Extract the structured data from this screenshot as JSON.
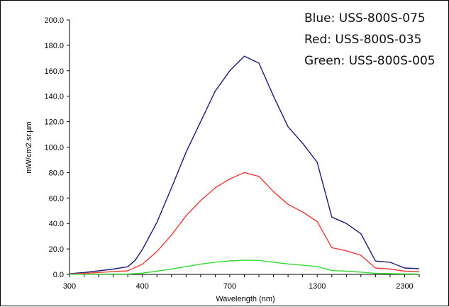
{
  "chart_data": {
    "type": "line",
    "xlabel": "Wavelength (nm)",
    "ylabel": "mW/cm2.sr.µm",
    "ylim": [
      0,
      200
    ],
    "y_ticks": [
      "0.0",
      "20.0",
      "40.0",
      "60.0",
      "80.0",
      "100.0",
      "120.0",
      "140.0",
      "160.0",
      "180.0",
      "200.0"
    ],
    "x_tick_labels": [
      "300",
      "400",
      "700",
      "1300",
      "2300"
    ],
    "grid": false,
    "legend_position": "top-right",
    "legend": [
      {
        "text": "Blue: USS-800S-075",
        "color": "#1a1a7a"
      },
      {
        "text": "Red: USS-800S-035",
        "color": "#f03a3a"
      },
      {
        "text": "Green: USS-800S-005",
        "color": "#33dd33"
      }
    ],
    "series": [
      {
        "color": "#1a1a7a",
        "values": [
          [
            0,
            0.5
          ],
          [
            0.2,
            1.5
          ],
          [
            0.4,
            2.8
          ],
          [
            0.6,
            4.2
          ],
          [
            0.8,
            6
          ],
          [
            0.9,
            11
          ],
          [
            1.0,
            19.5
          ],
          [
            1.2,
            41
          ],
          [
            1.4,
            68
          ],
          [
            1.6,
            96
          ],
          [
            1.8,
            120
          ],
          [
            2.0,
            144
          ],
          [
            2.2,
            160
          ],
          [
            2.4,
            171.5
          ],
          [
            2.6,
            166
          ],
          [
            2.8,
            140
          ],
          [
            3.0,
            116
          ],
          [
            3.2,
            103
          ],
          [
            3.4,
            88
          ],
          [
            3.6,
            45
          ],
          [
            3.8,
            40
          ],
          [
            4.0,
            32
          ],
          [
            4.2,
            10.5
          ],
          [
            4.4,
            9.5
          ],
          [
            4.6,
            5
          ],
          [
            4.8,
            4.5
          ]
        ]
      },
      {
        "color": "#f03a3a",
        "values": [
          [
            0,
            0.3
          ],
          [
            0.2,
            0.8
          ],
          [
            0.4,
            1.5
          ],
          [
            0.6,
            2.2
          ],
          [
            0.8,
            2.8
          ],
          [
            1.0,
            8
          ],
          [
            1.2,
            18
          ],
          [
            1.4,
            31
          ],
          [
            1.6,
            46
          ],
          [
            1.8,
            58
          ],
          [
            2.0,
            68
          ],
          [
            2.2,
            75
          ],
          [
            2.4,
            80
          ],
          [
            2.6,
            77
          ],
          [
            2.8,
            65
          ],
          [
            3.0,
            55
          ],
          [
            3.2,
            49
          ],
          [
            3.4,
            41.5
          ],
          [
            3.6,
            21
          ],
          [
            3.8,
            18.5
          ],
          [
            4.0,
            15
          ],
          [
            4.2,
            5
          ],
          [
            4.4,
            4.2
          ],
          [
            4.6,
            2.5
          ],
          [
            4.8,
            2.2
          ]
        ]
      },
      {
        "color": "#33dd33",
        "values": [
          [
            0,
            0.1
          ],
          [
            0.4,
            0.2
          ],
          [
            0.8,
            0.3
          ],
          [
            1.0,
            1
          ],
          [
            1.2,
            2.5
          ],
          [
            1.4,
            4.2
          ],
          [
            1.6,
            6.2
          ],
          [
            1.8,
            8
          ],
          [
            2.0,
            9.6
          ],
          [
            2.2,
            10.6
          ],
          [
            2.4,
            11.2
          ],
          [
            2.6,
            11
          ],
          [
            2.8,
            9.5
          ],
          [
            3.0,
            8.2
          ],
          [
            3.2,
            7.2
          ],
          [
            3.4,
            6.2
          ],
          [
            3.6,
            3
          ],
          [
            3.8,
            2.5
          ],
          [
            4.0,
            1.8
          ],
          [
            4.2,
            0.8
          ],
          [
            4.4,
            0.6
          ],
          [
            4.6,
            0.4
          ],
          [
            4.8,
            0.3
          ]
        ]
      }
    ]
  }
}
